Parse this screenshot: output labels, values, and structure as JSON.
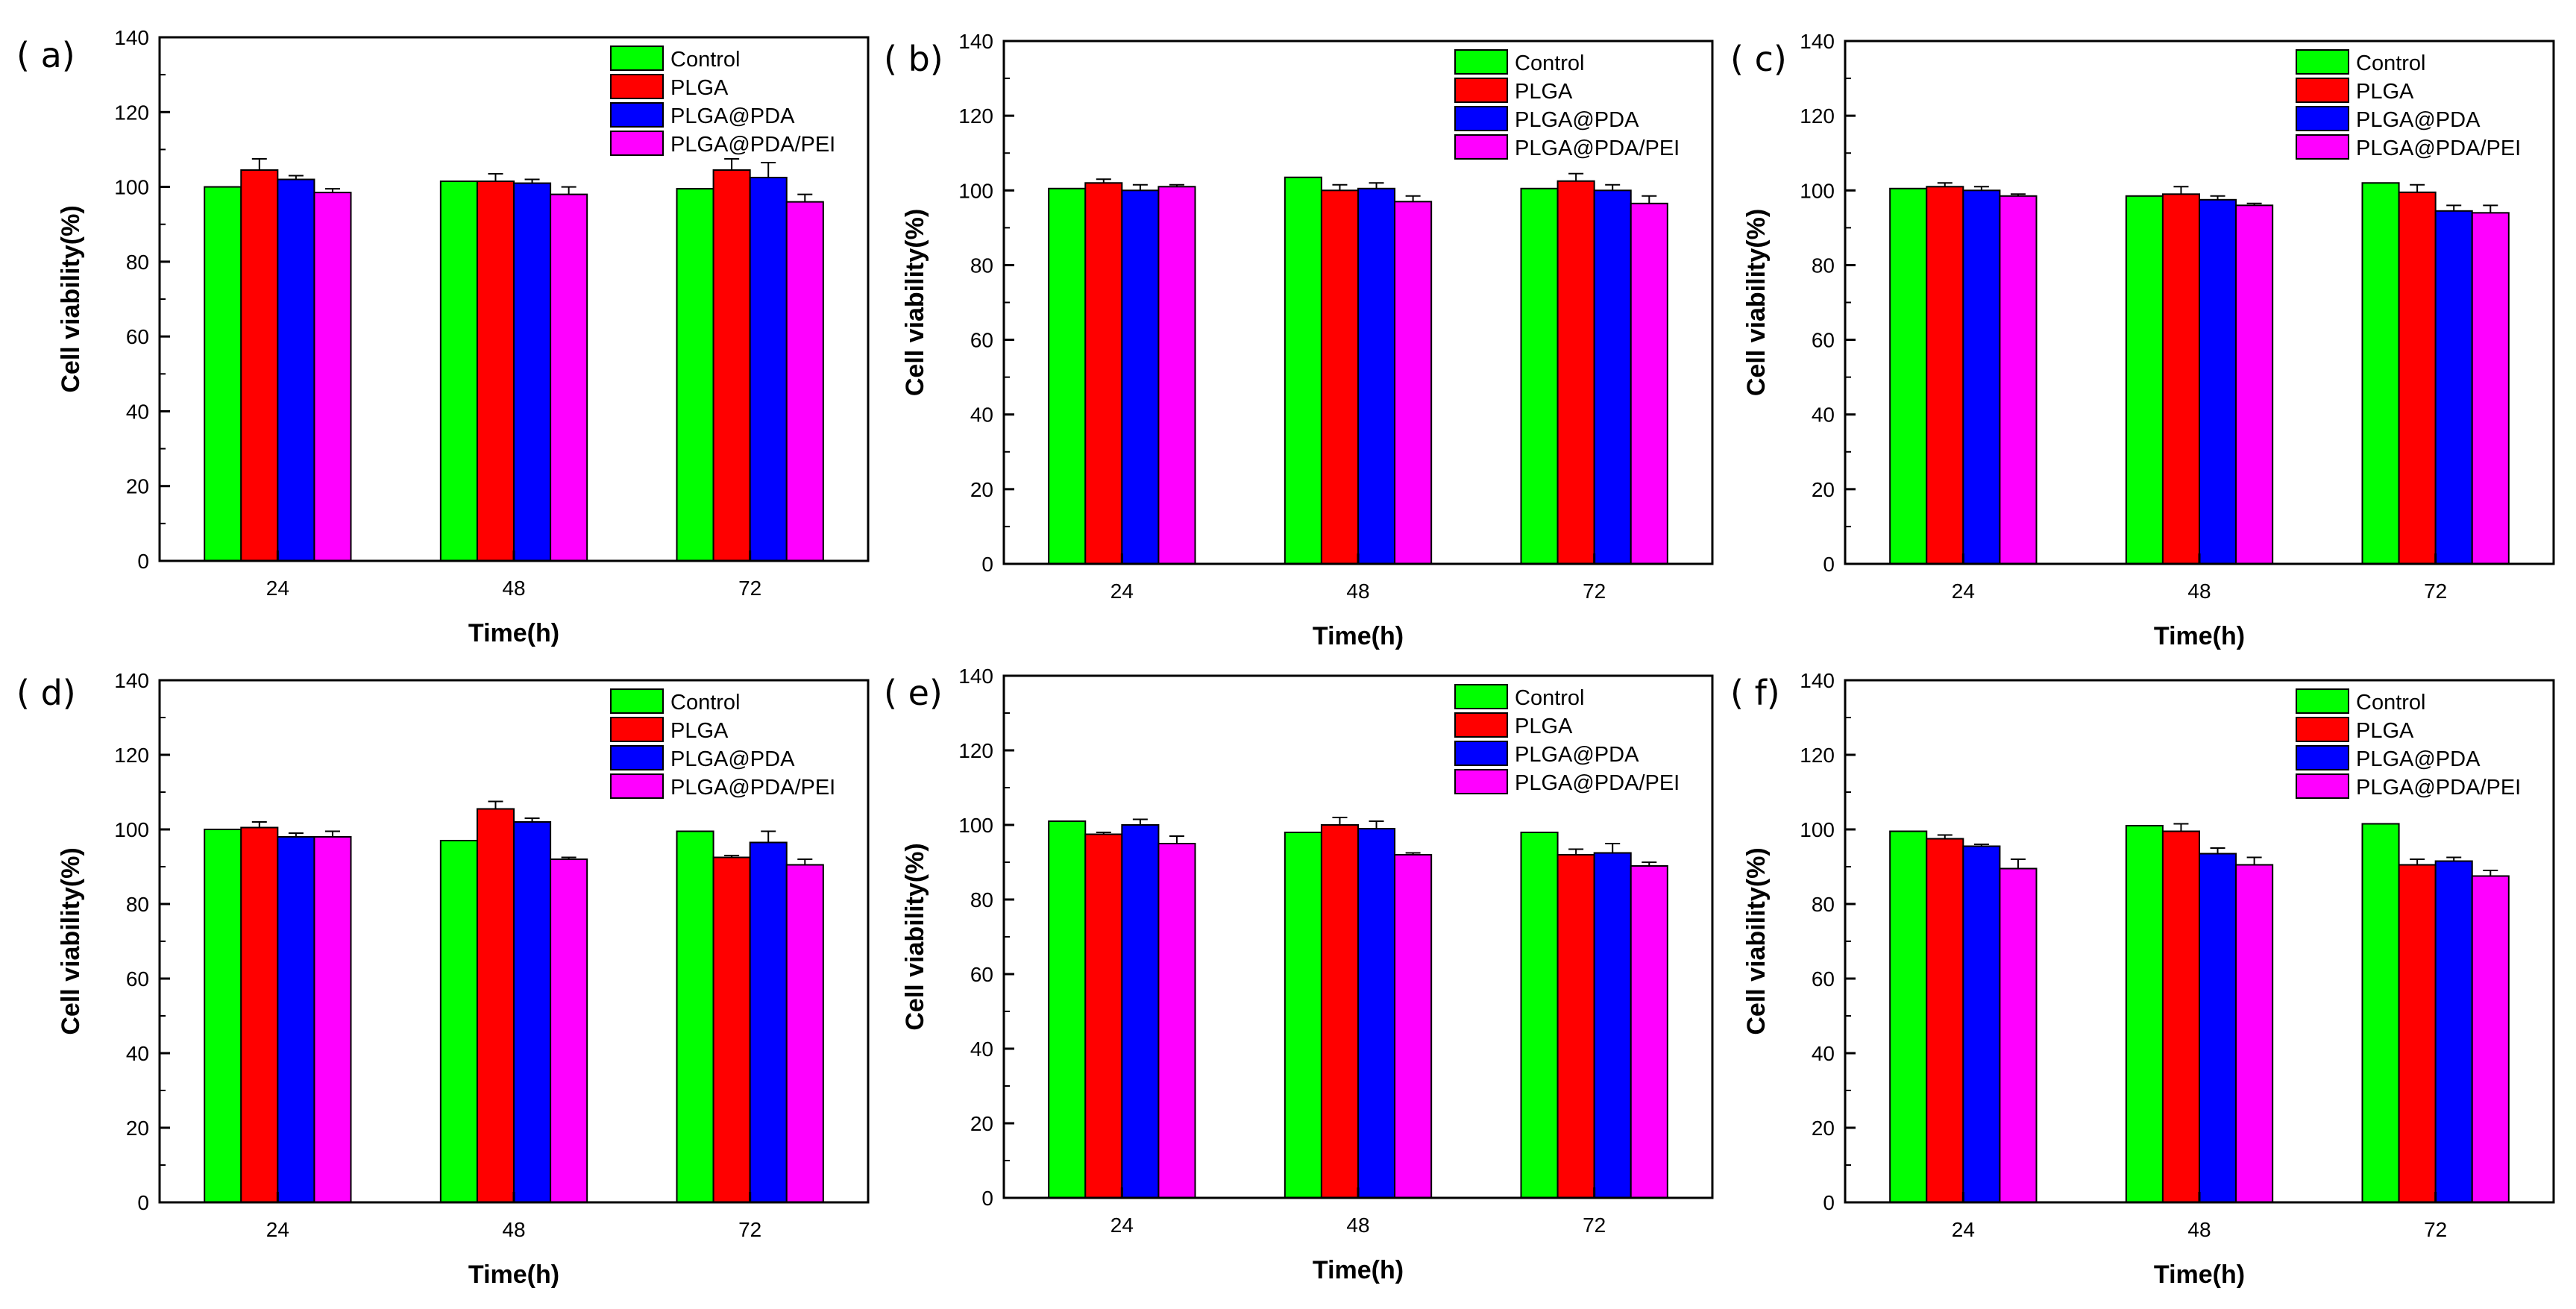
{
  "figure_title": "",
  "chart_data": [
    {
      "panel": "( a)",
      "type": "bar",
      "xlabel": "Time(h)",
      "ylabel": "Cell viability(%)",
      "ylim": [
        0,
        140
      ],
      "yticks": [
        0,
        20,
        40,
        60,
        80,
        100,
        120,
        140
      ],
      "categories": [
        "24",
        "48",
        "72"
      ],
      "legend_position": "top-right",
      "series": [
        {
          "name": "Control",
          "color": "#00ff00",
          "values": [
            100.0,
            101.5,
            99.5
          ],
          "errors": [
            0,
            0,
            0
          ]
        },
        {
          "name": "PLGA",
          "color": "#ff0000",
          "values": [
            104.5,
            101.5,
            104.5
          ],
          "errors": [
            3.0,
            2.0,
            3.0
          ]
        },
        {
          "name": "PLGA@PDA",
          "color": "#0000ff",
          "values": [
            102.0,
            101.0,
            102.5
          ],
          "errors": [
            1.0,
            1.0,
            4.0
          ]
        },
        {
          "name": "PLGA@PDA/PEI",
          "color": "#ff00ff",
          "values": [
            98.5,
            98.0,
            96.0
          ],
          "errors": [
            1.0,
            2.0,
            2.0
          ]
        }
      ]
    },
    {
      "panel": "( b)",
      "type": "bar",
      "xlabel": "Time(h)",
      "ylabel": "Cell viability(%)",
      "ylim": [
        0,
        140
      ],
      "yticks": [
        0,
        20,
        40,
        60,
        80,
        100,
        120,
        140
      ],
      "categories": [
        "24",
        "48",
        "72"
      ],
      "legend_position": "top-right",
      "series": [
        {
          "name": "Control",
          "color": "#00ff00",
          "values": [
            100.5,
            103.5,
            100.5
          ],
          "errors": [
            0,
            0,
            0
          ]
        },
        {
          "name": "PLGA",
          "color": "#ff0000",
          "values": [
            102.0,
            100.0,
            102.5
          ],
          "errors": [
            1.0,
            1.5,
            2.0
          ]
        },
        {
          "name": "PLGA@PDA",
          "color": "#0000ff",
          "values": [
            100.0,
            100.5,
            100.0
          ],
          "errors": [
            1.5,
            1.5,
            1.5
          ]
        },
        {
          "name": "PLGA@PDA/PEI",
          "color": "#ff00ff",
          "values": [
            101.0,
            97.0,
            96.5
          ],
          "errors": [
            0.5,
            1.5,
            2.0
          ]
        }
      ]
    },
    {
      "panel": "( c)",
      "type": "bar",
      "xlabel": "Time(h)",
      "ylabel": "Cell viability(%)",
      "ylim": [
        0,
        140
      ],
      "yticks": [
        0,
        20,
        40,
        60,
        80,
        100,
        120,
        140
      ],
      "categories": [
        "24",
        "48",
        "72"
      ],
      "legend_position": "top-right",
      "series": [
        {
          "name": "Control",
          "color": "#00ff00",
          "values": [
            100.5,
            98.5,
            102.0
          ],
          "errors": [
            0,
            0,
            0
          ]
        },
        {
          "name": "PLGA",
          "color": "#ff0000",
          "values": [
            101.0,
            99.0,
            99.5
          ],
          "errors": [
            1.0,
            2.0,
            2.0
          ]
        },
        {
          "name": "PLGA@PDA",
          "color": "#0000ff",
          "values": [
            100.0,
            97.5,
            94.5
          ],
          "errors": [
            1.0,
            1.0,
            1.5
          ]
        },
        {
          "name": "PLGA@PDA/PEI",
          "color": "#ff00ff",
          "values": [
            98.5,
            96.0,
            94.0
          ],
          "errors": [
            0.5,
            0.5,
            2.0
          ]
        }
      ]
    },
    {
      "panel": "( d)",
      "type": "bar",
      "xlabel": "Time(h)",
      "ylabel": "Cell viability(%)",
      "ylim": [
        0,
        140
      ],
      "yticks": [
        0,
        20,
        40,
        60,
        80,
        100,
        120,
        140
      ],
      "categories": [
        "24",
        "48",
        "72"
      ],
      "legend_position": "top-right",
      "series": [
        {
          "name": "Control",
          "color": "#00ff00",
          "values": [
            100.0,
            97.0,
            99.5
          ],
          "errors": [
            0,
            0,
            0
          ]
        },
        {
          "name": "PLGA",
          "color": "#ff0000",
          "values": [
            100.5,
            105.5,
            92.5
          ],
          "errors": [
            1.5,
            2.0,
            0.5
          ]
        },
        {
          "name": "PLGA@PDA",
          "color": "#0000ff",
          "values": [
            98.0,
            102.0,
            96.5
          ],
          "errors": [
            1.0,
            1.0,
            3.0
          ]
        },
        {
          "name": "PLGA@PDA/PEI",
          "color": "#ff00ff",
          "values": [
            98.0,
            92.0,
            90.5
          ],
          "errors": [
            1.5,
            0.5,
            1.5
          ]
        }
      ]
    },
    {
      "panel": "( e)",
      "type": "bar",
      "xlabel": "Time(h)",
      "ylabel": "Cell viability(%)",
      "ylim": [
        0,
        140
      ],
      "yticks": [
        0,
        20,
        40,
        60,
        80,
        100,
        120,
        140
      ],
      "categories": [
        "24",
        "48",
        "72"
      ],
      "legend_position": "top-right",
      "series": [
        {
          "name": "Control",
          "color": "#00ff00",
          "values": [
            101.0,
            98.0,
            98.0
          ],
          "errors": [
            0,
            0,
            0
          ]
        },
        {
          "name": "PLGA",
          "color": "#ff0000",
          "values": [
            97.5,
            100.0,
            92.0
          ],
          "errors": [
            0.5,
            2.0,
            1.5
          ]
        },
        {
          "name": "PLGA@PDA",
          "color": "#0000ff",
          "values": [
            100.0,
            99.0,
            92.5
          ],
          "errors": [
            1.5,
            2.0,
            2.5
          ]
        },
        {
          "name": "PLGA@PDA/PEI",
          "color": "#ff00ff",
          "values": [
            95.0,
            92.0,
            89.0
          ],
          "errors": [
            2.0,
            0.5,
            1.0
          ]
        }
      ]
    },
    {
      "panel": "( f)",
      "type": "bar",
      "xlabel": "Time(h)",
      "ylabel": "Cell viability(%)",
      "ylim": [
        0,
        140
      ],
      "yticks": [
        0,
        20,
        40,
        60,
        80,
        100,
        120,
        140
      ],
      "categories": [
        "24",
        "48",
        "72"
      ],
      "legend_position": "top-right",
      "series": [
        {
          "name": "Control",
          "color": "#00ff00",
          "values": [
            99.5,
            101.0,
            101.5
          ],
          "errors": [
            0,
            0,
            0
          ]
        },
        {
          "name": "PLGA",
          "color": "#ff0000",
          "values": [
            97.5,
            99.5,
            90.5
          ],
          "errors": [
            1.0,
            2.0,
            1.5
          ]
        },
        {
          "name": "PLGA@PDA",
          "color": "#0000ff",
          "values": [
            95.5,
            93.5,
            91.5
          ],
          "errors": [
            0.5,
            1.5,
            1.0
          ]
        },
        {
          "name": "PLGA@PDA/PEI",
          "color": "#ff00ff",
          "values": [
            89.5,
            90.5,
            87.5
          ],
          "errors": [
            2.5,
            2.0,
            1.5
          ]
        }
      ]
    }
  ]
}
